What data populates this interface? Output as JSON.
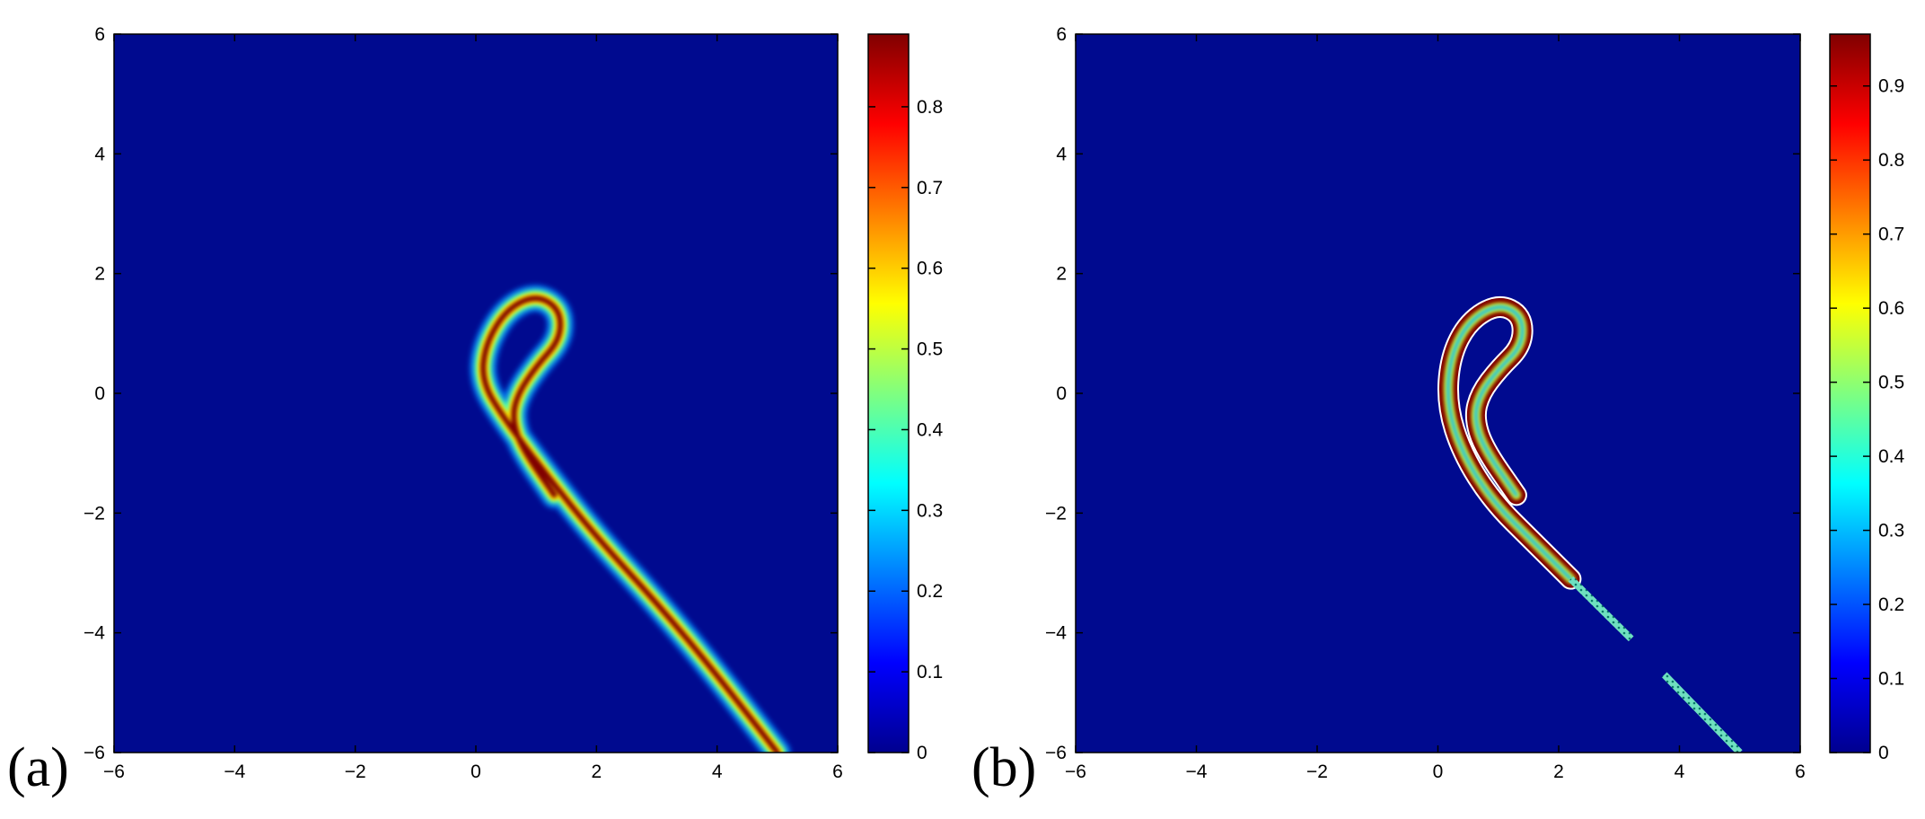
{
  "chart_data": [
    {
      "type": "heatmap",
      "panel_label": "(a)",
      "xlim": [
        -6,
        6
      ],
      "ylim": [
        -6,
        6
      ],
      "x_ticks": [
        "−6",
        "−4",
        "−2",
        "0",
        "2",
        "4",
        "6"
      ],
      "y_ticks": [
        "6",
        "4",
        "2",
        "0",
        "−2",
        "−4",
        "−6"
      ],
      "colorbar": {
        "colormap": "jet",
        "range": [
          0,
          0.89
        ],
        "ticks": [
          "0",
          "0.1",
          "0.2",
          "0.3",
          "0.4",
          "0.5",
          "0.6",
          "0.7",
          "0.8"
        ]
      },
      "background_value": 0,
      "feature": {
        "description_values": "curled filament: loop centred near (1.0, 1.0), strands extending to about (5.0, -6.0)",
        "centerline": [
          [
            5.0,
            -6.0
          ],
          [
            4.0,
            -4.7
          ],
          [
            3.0,
            -3.5
          ],
          [
            2.0,
            -2.4
          ],
          [
            1.2,
            -1.4
          ],
          [
            0.45,
            -0.4
          ],
          [
            0.1,
            0.2
          ],
          [
            0.15,
            0.8
          ],
          [
            0.5,
            1.4
          ],
          [
            1.0,
            1.65
          ],
          [
            1.4,
            1.4
          ],
          [
            1.4,
            0.9
          ],
          [
            1.0,
            0.45
          ],
          [
            0.7,
            0.0
          ],
          [
            0.6,
            -0.4
          ],
          [
            0.75,
            -0.9
          ],
          [
            1.3,
            -1.7
          ]
        ],
        "peak_value": 0.89
      }
    },
    {
      "type": "heatmap",
      "panel_label": "(b)",
      "xlim": [
        -6,
        6
      ],
      "ylim": [
        -6,
        6
      ],
      "x_ticks": [
        "−6",
        "−4",
        "−2",
        "0",
        "2",
        "4",
        "6"
      ],
      "y_ticks": [
        "6",
        "4",
        "2",
        "0",
        "−2",
        "−4",
        "−6"
      ],
      "colorbar": {
        "colormap": "jet",
        "range": [
          0,
          0.97
        ],
        "ticks": [
          "0",
          "0.1",
          "0.2",
          "0.3",
          "0.4",
          "0.5",
          "0.6",
          "0.7",
          "0.8",
          "0.9"
        ]
      },
      "background_value": 0,
      "feature": {
        "centerline": [
          [
            2.2,
            -3.1
          ],
          [
            1.6,
            -2.5
          ],
          [
            0.9,
            -1.8
          ],
          [
            0.4,
            -1.0
          ],
          [
            0.15,
            -0.2
          ],
          [
            0.2,
            0.6
          ],
          [
            0.5,
            1.2
          ],
          [
            1.0,
            1.5
          ],
          [
            1.4,
            1.3
          ],
          [
            1.4,
            0.8
          ],
          [
            1.0,
            0.4
          ],
          [
            0.7,
            0.0
          ],
          [
            0.6,
            -0.4
          ],
          [
            0.75,
            -0.9
          ],
          [
            1.3,
            -1.7
          ]
        ],
        "peak_value": 0.97,
        "dotted_segments": [
          {
            "from": [
              2.2,
              -3.1
            ],
            "to": [
              3.2,
              -4.1
            ],
            "value": 0.4
          },
          {
            "from": [
              3.75,
              -4.7
            ],
            "to": [
              5.0,
              -6.0
            ],
            "value": 0.4
          }
        ]
      }
    }
  ]
}
